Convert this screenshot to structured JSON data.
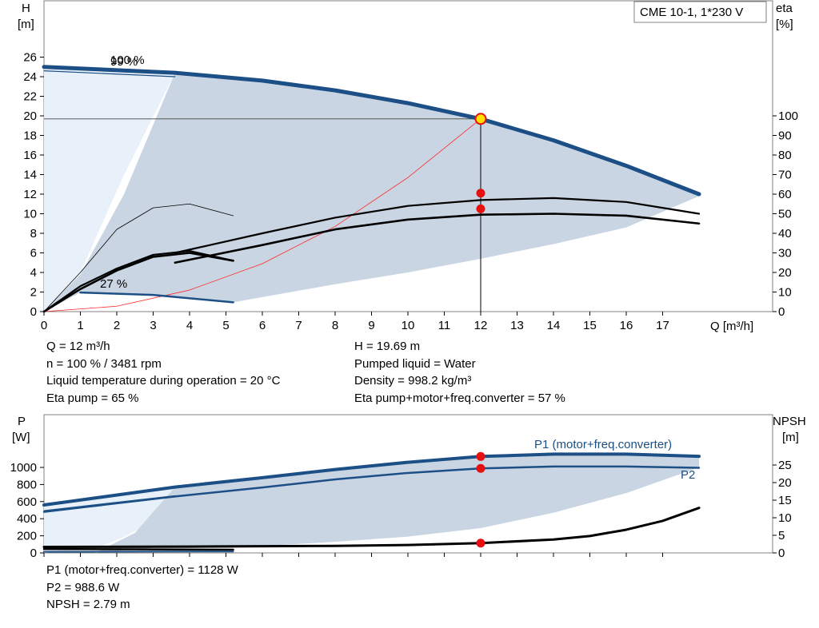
{
  "title": "CME 10-1, 1*230 V",
  "colors": {
    "curve_blue": "#1c4f86",
    "area_dark": "#c9d5e2",
    "area_light": "#e8f0f9",
    "efficiency_red": "#ff2a2a",
    "dot_red": "#e61010",
    "op_point_yellow": "#ffe000"
  },
  "pump_chart": {
    "y_left_label": [
      "H",
      "[m]"
    ],
    "y_right_label": [
      "eta",
      "[%]"
    ],
    "x_label": "Q [m³/h]",
    "x_ticks": [
      0,
      1,
      2,
      3,
      4,
      5,
      6,
      7,
      8,
      9,
      10,
      11,
      12,
      13,
      14,
      15,
      16,
      17
    ],
    "y_left_ticks": [
      0,
      2,
      4,
      6,
      8,
      10,
      12,
      14,
      16,
      18,
      20,
      22,
      24,
      26
    ],
    "y_right_ticks": [
      0,
      10,
      20,
      30,
      40,
      50,
      60,
      70,
      80,
      90,
      100
    ],
    "xlim": [
      0,
      19.5
    ],
    "ylim": [
      0,
      28.5
    ],
    "curve_labels": [
      "100 %",
      "99 %",
      "27 %"
    ]
  },
  "power_chart": {
    "y_left_label": [
      "P",
      "[W]"
    ],
    "y_right_label": [
      "NPSH",
      "[m]"
    ],
    "y_left_ticks": [
      0,
      200,
      400,
      600,
      800,
      1000
    ],
    "y_right_ticks": [
      0,
      5,
      10,
      15,
      20,
      25
    ],
    "ylim_left": [
      0,
      1300
    ],
    "ylim_right": [
      0,
      32.5
    ],
    "series_labels": [
      "P1 (motor+freq.converter)",
      "P2"
    ]
  },
  "chart_data": [
    {
      "type": "line",
      "title": "CME 10-1, 1*230 V",
      "xlabel": "Q [m³/h]",
      "ylabel": "H [m]",
      "y2label": "eta [%]",
      "xlim": [
        0,
        19.5
      ],
      "ylim": [
        0,
        28.5
      ],
      "y2lim": [
        0,
        118.75
      ],
      "series": [
        {
          "name": "100 %",
          "axis": "H",
          "x": [
            0,
            3.6,
            6,
            8,
            10,
            12,
            14,
            16,
            18
          ],
          "y": [
            25.0,
            24.4,
            23.6,
            22.6,
            21.3,
            19.69,
            17.5,
            14.9,
            12.0
          ]
        },
        {
          "name": "99 %",
          "axis": "H",
          "x": [
            0,
            3.6
          ],
          "y": [
            24.6,
            24.0
          ]
        },
        {
          "name": "27 %",
          "axis": "H",
          "x": [
            1,
            3,
            5.2
          ],
          "y": [
            1.95,
            1.7,
            0.95
          ]
        },
        {
          "axis": "eta",
          "x": [
            3.6,
            6,
            8,
            10,
            12,
            14,
            16,
            18
          ],
          "y": [
            30,
            40,
            48,
            54,
            57,
            58,
            56,
            50
          ]
        },
        {
          "axis": "eta",
          "x": [
            3.6,
            6,
            8,
            10,
            12,
            14,
            16,
            18
          ],
          "y": [
            25,
            34,
            42,
            47,
            49.5,
            50,
            49,
            45
          ]
        },
        {
          "axis": "eta",
          "x": [
            0,
            1,
            2,
            3,
            4,
            5.2
          ],
          "y": [
            0,
            13,
            22,
            29,
            31,
            26
          ]
        },
        {
          "axis": "eta",
          "x": [
            0,
            1,
            2,
            3,
            4,
            5.2
          ],
          "y": [
            0,
            11.5,
            21,
            28,
            30,
            26
          ]
        },
        {
          "axis": "eta",
          "x": [
            0,
            1,
            2,
            3,
            4,
            5.2
          ],
          "y": [
            0,
            20,
            42,
            53,
            55,
            49
          ]
        },
        {
          "axis": "H",
          "x": [
            0,
            2,
            4,
            6,
            8,
            10,
            12
          ],
          "y": [
            0,
            0.55,
            2.2,
            4.9,
            8.7,
            13.7,
            19.69
          ]
        }
      ],
      "operating_point": {
        "Q": 12,
        "H": 19.69,
        "eta_marks": [
          60.5,
          52.5
        ],
        "text": [
          "Q = 12 m³/h",
          "n = 100 % / 3481 rpm",
          "Liquid temperature during operation = 20 °C",
          "Eta pump = 65 %",
          "H = 19.69 m",
          "Pumped liquid = Water",
          "Density = 998.2 kg/m³",
          "Eta pump+motor+freq.converter = 57 %"
        ]
      }
    },
    {
      "type": "line",
      "xlabel": "Q [m³/h]",
      "ylabel": "P [W]",
      "y2label": "NPSH [m]",
      "ylim": [
        0,
        1300
      ],
      "y2lim": [
        0,
        32.5
      ],
      "series": [
        {
          "name": "P1 (motor+freq.converter)",
          "axis": "P",
          "x": [
            0,
            3.6,
            6,
            8,
            10,
            12,
            14,
            16,
            18
          ],
          "y": [
            560,
            770,
            880,
            975,
            1060,
            1128,
            1155,
            1155,
            1130
          ]
        },
        {
          "name": "P2",
          "axis": "P",
          "x": [
            0,
            3.6,
            6,
            8,
            10,
            12,
            14,
            16,
            18
          ],
          "y": [
            480,
            660,
            765,
            860,
            935,
            988.6,
            1010,
            1010,
            995
          ]
        },
        {
          "name": "NPSH",
          "axis": "NPSH",
          "x": [
            0,
            4,
            6,
            8,
            10,
            12,
            14,
            15,
            16,
            17,
            18
          ],
          "y": [
            1.7,
            1.8,
            1.9,
            2.0,
            2.25,
            2.79,
            3.8,
            4.8,
            6.6,
            9.1,
            12.8
          ]
        }
      ],
      "operating_point": {
        "P1": 1128,
        "P2": 988.6,
        "NPSH": 2.79,
        "text": [
          "P1 (motor+freq.converter) = 1128 W",
          "P2 = 988.6 W",
          "NPSH = 2.79 m"
        ]
      }
    }
  ]
}
